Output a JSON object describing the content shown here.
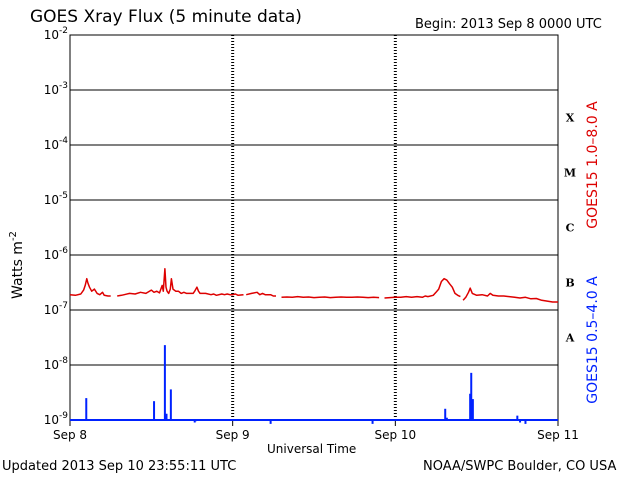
{
  "header": {
    "title": "GOES Xray Flux (5 minute data)",
    "begin": "Begin:  2013 Sep 8 0000 UTC"
  },
  "footer": {
    "updated": "Updated 2013 Sep 10 23:55:11 UTC",
    "credit": "NOAA/SWPC Boulder, CO USA"
  },
  "colors": {
    "long_channel": "#dd0000",
    "short_channel": "#0022ff",
    "grid": "#000000"
  },
  "chart_data": {
    "type": "line",
    "title": "GOES Xray Flux (5 minute data)",
    "xlabel": "Universal Time",
    "ylabel": "Watts m⁻²",
    "yscale": "log",
    "ylim": [
      1e-09,
      0.01
    ],
    "xlim": [
      "2013-09-08 00:00",
      "2013-09-11 00:00"
    ],
    "x_tick_labels": [
      "Sep 8",
      "Sep 9",
      "Sep 10",
      "Sep 11"
    ],
    "y_tick_labels": [
      {
        "mant": "10",
        "exp": "-9",
        "value": 1e-09
      },
      {
        "mant": "10",
        "exp": "-8",
        "value": 1e-08
      },
      {
        "mant": "10",
        "exp": "-7",
        "value": 1e-07
      },
      {
        "mant": "10",
        "exp": "-6",
        "value": 1e-06
      },
      {
        "mant": "10",
        "exp": "-5",
        "value": 1e-05
      },
      {
        "mant": "10",
        "exp": "-4",
        "value": 0.0001
      },
      {
        "mant": "10",
        "exp": "-3",
        "value": 0.001
      },
      {
        "mant": "10",
        "exp": "-2",
        "value": 0.01
      }
    ],
    "flare_classes": [
      {
        "label": "A",
        "value": 3.16e-08
      },
      {
        "label": "B",
        "value": 3.16e-07
      },
      {
        "label": "C",
        "value": 3.16e-06
      },
      {
        "label": "M",
        "value": 3.16e-05
      },
      {
        "label": "X",
        "value": 0.000316
      }
    ],
    "grid": true,
    "series": [
      {
        "name": "GOES15 1.0–8.0 A",
        "color": "#dd0000",
        "segments": [
          [
            [
              0,
              1.9e-07
            ],
            [
              0.1,
              1.85e-07
            ],
            [
              0.2,
              1.95e-07
            ],
            [
              0.25,
              2.3e-07
            ],
            [
              0.28,
              2.8e-07
            ],
            [
              0.31,
              3.7e-07
            ],
            [
              0.33,
              3.1e-07
            ],
            [
              0.36,
              2.6e-07
            ],
            [
              0.4,
              2.2e-07
            ],
            [
              0.45,
              2.4e-07
            ],
            [
              0.5,
              2e-07
            ],
            [
              0.55,
              1.9e-07
            ],
            [
              0.6,
              2.1e-07
            ],
            [
              0.63,
              1.85e-07
            ],
            [
              0.7,
              1.8e-07
            ],
            [
              0.75,
              1.8e-07
            ]
          ],
          [
            [
              0.87,
              1.8e-07
            ],
            [
              0.95,
              1.85e-07
            ],
            [
              1.0,
              1.9e-07
            ],
            [
              1.1,
              2e-07
            ],
            [
              1.2,
              1.95e-07
            ],
            [
              1.3,
              2.1e-07
            ],
            [
              1.4,
              2e-07
            ],
            [
              1.5,
              2.3e-07
            ],
            [
              1.55,
              2.1e-07
            ],
            [
              1.6,
              2.2e-07
            ],
            [
              1.65,
              2.05e-07
            ],
            [
              1.7,
              2.8e-07
            ],
            [
              1.72,
              2.2e-07
            ],
            [
              1.75,
              5.6e-07
            ],
            [
              1.77,
              2.6e-07
            ],
            [
              1.79,
              2.2e-07
            ],
            [
              1.82,
              2e-07
            ],
            [
              1.85,
              2.4e-07
            ],
            [
              1.87,
              3.7e-07
            ],
            [
              1.9,
              2.4e-07
            ],
            [
              1.95,
              2.2e-07
            ],
            [
              2.0,
              2.2e-07
            ],
            [
              2.05,
              2e-07
            ],
            [
              2.1,
              2.1e-07
            ],
            [
              2.15,
              2e-07
            ],
            [
              2.2,
              2e-07
            ],
            [
              2.27,
              2e-07
            ],
            [
              2.3,
              2.2e-07
            ],
            [
              2.34,
              2.6e-07
            ],
            [
              2.37,
              2.2e-07
            ],
            [
              2.4,
              2e-07
            ],
            [
              2.5,
              2e-07
            ],
            [
              2.6,
              1.9e-07
            ],
            [
              2.65,
              1.95e-07
            ],
            [
              2.7,
              1.85e-07
            ],
            [
              2.8,
              1.95e-07
            ],
            [
              2.85,
              1.9e-07
            ],
            [
              2.9,
              1.95e-07
            ],
            [
              2.95,
              1.9e-07
            ],
            [
              3.0,
              1.9e-07
            ],
            [
              3.05,
              1.95e-07
            ],
            [
              3.1,
              1.85e-07
            ],
            [
              3.2,
              1.9e-07
            ]
          ],
          [
            [
              3.25,
              1.9e-07
            ],
            [
              3.35,
              2e-07
            ],
            [
              3.45,
              2.1e-07
            ],
            [
              3.5,
              1.9e-07
            ],
            [
              3.55,
              2e-07
            ],
            [
              3.6,
              1.9e-07
            ],
            [
              3.7,
              1.9e-07
            ],
            [
              3.75,
              1.8e-07
            ],
            [
              3.8,
              1.8e-07
            ]
          ],
          [
            [
              3.9,
              1.7e-07
            ],
            [
              4.0,
              1.72e-07
            ],
            [
              4.1,
              1.7e-07
            ],
            [
              4.2,
              1.75e-07
            ],
            [
              4.3,
              1.7e-07
            ],
            [
              4.4,
              1.72e-07
            ],
            [
              4.5,
              1.68e-07
            ],
            [
              4.6,
              1.7e-07
            ],
            [
              4.7,
              1.72e-07
            ],
            [
              4.8,
              1.68e-07
            ],
            [
              4.9,
              1.7e-07
            ],
            [
              5.0,
              1.72e-07
            ],
            [
              5.1,
              1.7e-07
            ],
            [
              5.2,
              1.7e-07
            ],
            [
              5.3,
              1.72e-07
            ],
            [
              5.4,
              1.7e-07
            ],
            [
              5.5,
              1.68e-07
            ],
            [
              5.6,
              1.7e-07
            ],
            [
              5.7,
              1.68e-07
            ]
          ],
          [
            [
              5.8,
              1.65e-07
            ],
            [
              5.9,
              1.68e-07
            ],
            [
              6.0,
              1.7e-07
            ],
            [
              6.1,
              1.7e-07
            ],
            [
              6.2,
              1.75e-07
            ],
            [
              6.3,
              1.7e-07
            ],
            [
              6.4,
              1.75e-07
            ],
            [
              6.5,
              1.7e-07
            ],
            [
              6.55,
              1.8e-07
            ],
            [
              6.6,
              1.75e-07
            ],
            [
              6.7,
              1.85e-07
            ],
            [
              6.75,
              2.1e-07
            ],
            [
              6.8,
              2.4e-07
            ],
            [
              6.85,
              3.3e-07
            ],
            [
              6.9,
              3.7e-07
            ],
            [
              6.95,
              3.5e-07
            ],
            [
              7.0,
              3e-07
            ],
            [
              7.05,
              2.6e-07
            ],
            [
              7.1,
              2e-07
            ],
            [
              7.15,
              1.85e-07
            ],
            [
              7.2,
              1.75e-07
            ]
          ],
          [
            [
              7.25,
              1.5e-07
            ],
            [
              7.3,
              1.7e-07
            ],
            [
              7.35,
              2.1e-07
            ],
            [
              7.38,
              2.5e-07
            ],
            [
              7.42,
              2e-07
            ],
            [
              7.5,
              1.85e-07
            ],
            [
              7.6,
              1.9e-07
            ],
            [
              7.7,
              1.8e-07
            ],
            [
              7.75,
              2e-07
            ],
            [
              7.8,
              1.85e-07
            ],
            [
              7.9,
              1.8e-07
            ],
            [
              8.0,
              1.8e-07
            ],
            [
              8.1,
              1.75e-07
            ],
            [
              8.2,
              1.7e-07
            ],
            [
              8.3,
              1.65e-07
            ],
            [
              8.4,
              1.7e-07
            ],
            [
              8.5,
              1.6e-07
            ],
            [
              8.6,
              1.62e-07
            ],
            [
              8.7,
              1.5e-07
            ],
            [
              8.8,
              1.45e-07
            ],
            [
              8.9,
              1.4e-07
            ],
            [
              9.0,
              1.4e-07
            ]
          ]
        ]
      },
      {
        "name": "GOES15 0.5–4.0 A",
        "color": "#0022ff",
        "baseline": 7e-10,
        "spikes": [
          {
            "x": 0.3,
            "y": 2.5e-09
          },
          {
            "x": 1.55,
            "y": 2.2e-09
          },
          {
            "x": 1.72,
            "y": 1e-09
          },
          {
            "x": 1.75,
            "y": 2.3e-08
          },
          {
            "x": 1.78,
            "y": 1.3e-09
          },
          {
            "x": 1.86,
            "y": 3.6e-09
          },
          {
            "x": 2.3,
            "y": 9e-10
          },
          {
            "x": 2.32,
            "y": 9.5e-10
          },
          {
            "x": 3.1,
            "y": 1e-09
          },
          {
            "x": 3.7,
            "y": 8.5e-10
          },
          {
            "x": 5.58,
            "y": 8.5e-10
          },
          {
            "x": 6.88,
            "y": 1e-09
          },
          {
            "x": 6.92,
            "y": 1.6e-09
          },
          {
            "x": 6.95,
            "y": 1.1e-09
          },
          {
            "x": 7.38,
            "y": 3e-09
          },
          {
            "x": 7.4,
            "y": 7.2e-09
          },
          {
            "x": 7.43,
            "y": 2.4e-09
          },
          {
            "x": 8.2,
            "y": 1e-09
          },
          {
            "x": 8.25,
            "y": 1.2e-09
          },
          {
            "x": 8.3,
            "y": 9e-10
          },
          {
            "x": 8.4,
            "y": 8.5e-10
          }
        ]
      }
    ]
  }
}
